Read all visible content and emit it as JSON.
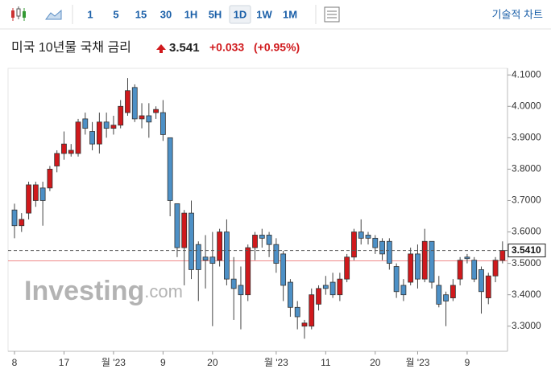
{
  "toolbar": {
    "intervals": [
      "1",
      "5",
      "15",
      "30",
      "1H",
      "5H",
      "1D",
      "1W",
      "1M"
    ],
    "active_interval": 6,
    "technical": "기술적 차트"
  },
  "chart_data": {
    "type": "candlestick",
    "title": "미국 10년물 국채 금리",
    "price": "3.541",
    "change": "+0.033",
    "change_pct": "(+0.95%)",
    "watermark": {
      "name": "Investing",
      "suffix": ".com"
    },
    "x": [
      "8",
      null,
      null,
      null,
      null,
      null,
      null,
      "17",
      null,
      null,
      null,
      null,
      null,
      null,
      "월 '23",
      null,
      null,
      null,
      null,
      null,
      null,
      "9",
      null,
      null,
      null,
      null,
      null,
      null,
      "20",
      null,
      null,
      null,
      null,
      null,
      null,
      null,
      null,
      "월 '23",
      null,
      null,
      null,
      null,
      null,
      null,
      "11",
      null,
      null,
      null,
      null,
      null,
      null,
      "20",
      null,
      null,
      null,
      null,
      null,
      "월 '23",
      null,
      null,
      null,
      null,
      null,
      null,
      "9",
      null,
      null,
      null,
      null,
      null
    ],
    "open": [
      3.67,
      3.62,
      3.66,
      3.7,
      3.74,
      3.74,
      3.81,
      3.85,
      3.85,
      3.85,
      3.96,
      3.92,
      3.88,
      3.95,
      3.93,
      3.94,
      3.98,
      4.06,
      3.96,
      3.97,
      3.98,
      3.98,
      3.9,
      3.69,
      3.55,
      3.66,
      3.56,
      3.52,
      3.52,
      3.51,
      3.6,
      3.45,
      3.43,
      3.4,
      3.55,
      3.59,
      3.59,
      3.56,
      3.53,
      3.44,
      3.36,
      3.3,
      3.3,
      3.37,
      3.43,
      3.44,
      3.4,
      3.45,
      3.52,
      3.6,
      3.59,
      3.58,
      3.57,
      3.57,
      3.49,
      3.43,
      3.44,
      3.53,
      3.45,
      3.57,
      3.43,
      3.4,
      3.39,
      3.45,
      3.52,
      3.51,
      3.48,
      3.39,
      3.46,
      3.51
    ],
    "high": [
      3.69,
      3.66,
      3.76,
      3.76,
      3.76,
      3.81,
      3.86,
      3.92,
      3.88,
      3.96,
      3.98,
      3.95,
      3.98,
      3.98,
      3.97,
      4.02,
      4.09,
      4.07,
      4.01,
      4.01,
      4.0,
      4.02,
      3.9,
      3.69,
      3.67,
      3.7,
      3.57,
      3.59,
      3.6,
      3.61,
      3.64,
      3.52,
      3.49,
      3.56,
      3.6,
      3.61,
      3.6,
      3.58,
      3.54,
      3.45,
      3.38,
      3.32,
      3.42,
      3.43,
      3.46,
      3.47,
      3.47,
      3.53,
      3.61,
      3.64,
      3.6,
      3.59,
      3.58,
      3.58,
      3.5,
      3.45,
      3.55,
      3.56,
      3.61,
      3.57,
      3.46,
      3.41,
      3.45,
      3.52,
      3.53,
      3.52,
      3.49,
      3.47,
      3.52,
      3.57
    ],
    "low": [
      3.58,
      3.6,
      3.64,
      3.68,
      3.62,
      3.73,
      3.79,
      3.83,
      3.84,
      3.84,
      3.91,
      3.86,
      3.85,
      3.9,
      3.91,
      3.93,
      3.97,
      3.95,
      3.93,
      3.9,
      3.96,
      3.89,
      3.65,
      3.52,
      3.43,
      3.45,
      3.38,
      3.42,
      3.3,
      3.49,
      3.43,
      3.32,
      3.29,
      3.38,
      3.51,
      3.55,
      3.52,
      3.47,
      3.38,
      3.33,
      3.29,
      3.26,
      3.29,
      3.35,
      3.4,
      3.39,
      3.38,
      3.44,
      3.51,
      3.56,
      3.56,
      3.53,
      3.51,
      3.48,
      3.39,
      3.38,
      3.43,
      3.42,
      3.44,
      3.42,
      3.36,
      3.3,
      3.38,
      3.43,
      3.5,
      3.44,
      3.34,
      3.37,
      3.44,
      3.5
    ],
    "close": [
      3.62,
      3.64,
      3.75,
      3.75,
      3.7,
      3.8,
      3.85,
      3.88,
      3.86,
      3.95,
      3.93,
      3.88,
      3.95,
      3.93,
      3.94,
      4.0,
      4.05,
      3.96,
      3.97,
      3.95,
      3.99,
      3.91,
      3.7,
      3.55,
      3.66,
      3.48,
      3.48,
      3.51,
      3.5,
      3.6,
      3.45,
      3.42,
      3.4,
      3.55,
      3.59,
      3.58,
      3.56,
      3.5,
      3.43,
      3.36,
      3.33,
      3.31,
      3.4,
      3.42,
      3.42,
      3.4,
      3.45,
      3.52,
      3.6,
      3.58,
      3.58,
      3.55,
      3.53,
      3.5,
      3.41,
      3.4,
      3.53,
      3.45,
      3.57,
      3.44,
      3.37,
      3.38,
      3.43,
      3.51,
      3.515,
      3.45,
      3.41,
      3.46,
      3.51,
      3.541
    ],
    "up_color": "#d0191c",
    "down_color": "#4d90c6",
    "ylim": [
      3.22,
      4.121
    ],
    "yticks": [
      {
        "value": 3.3,
        "label": "3.3000"
      },
      {
        "value": 3.4,
        "label": "3.4000"
      },
      {
        "value": 3.5,
        "label": "3.5000"
      },
      {
        "value": 3.6,
        "label": "3.6000"
      },
      {
        "value": 3.7,
        "label": "3.7000"
      },
      {
        "value": 3.8,
        "label": "3.8000"
      },
      {
        "value": 3.9,
        "label": "3.9000"
      },
      {
        "value": 4.0,
        "label": "4.0000"
      },
      {
        "value": 4.1,
        "label": "4.1000"
      }
    ],
    "last_price": {
      "value": 3.541,
      "label": "3.5410"
    },
    "prev_close": 3.508,
    "grid": false
  }
}
